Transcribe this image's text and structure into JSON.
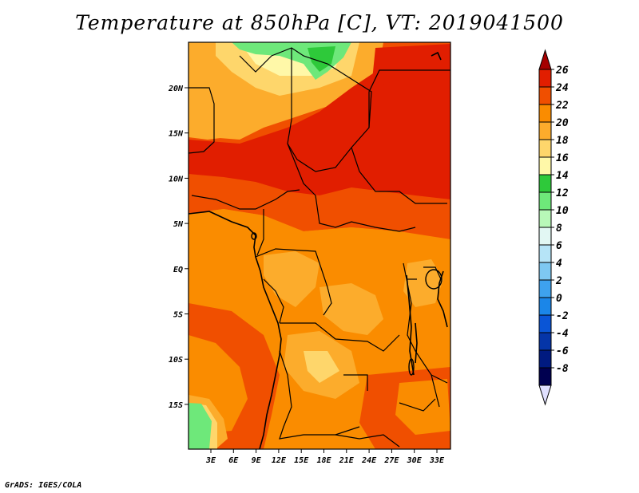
{
  "title": "Temperature at 850hPa [C], VT: 2019041500",
  "footer": "GrADS: IGES/COLA",
  "map": {
    "lat_labels": [
      "20N",
      "15N",
      "10N",
      "5N",
      "EQ",
      "5S",
      "10S",
      "15S"
    ],
    "lon_labels": [
      "3E",
      "6E",
      "9E",
      "12E",
      "15E",
      "18E",
      "21E",
      "24E",
      "27E",
      "30E",
      "33E"
    ]
  },
  "colorbar": {
    "labels": [
      "26",
      "24",
      "22",
      "20",
      "18",
      "16",
      "14",
      "12",
      "10",
      "8",
      "6",
      "4",
      "2",
      "0",
      "-2",
      "-4",
      "-6",
      "-8"
    ],
    "colors": [
      "#a50000",
      "#e11e00",
      "#f04f00",
      "#fa8c00",
      "#fcac2c",
      "#fed66b",
      "#fff8a8",
      "#2ec93a",
      "#6ee87a",
      "#b8f8b8",
      "#e2f7f3",
      "#b6e4f7",
      "#7ec8f2",
      "#3ea2ee",
      "#1b86e8",
      "#0a55d6",
      "#0535a8",
      "#001a80",
      "#000050",
      "#e0e0ff"
    ]
  }
}
